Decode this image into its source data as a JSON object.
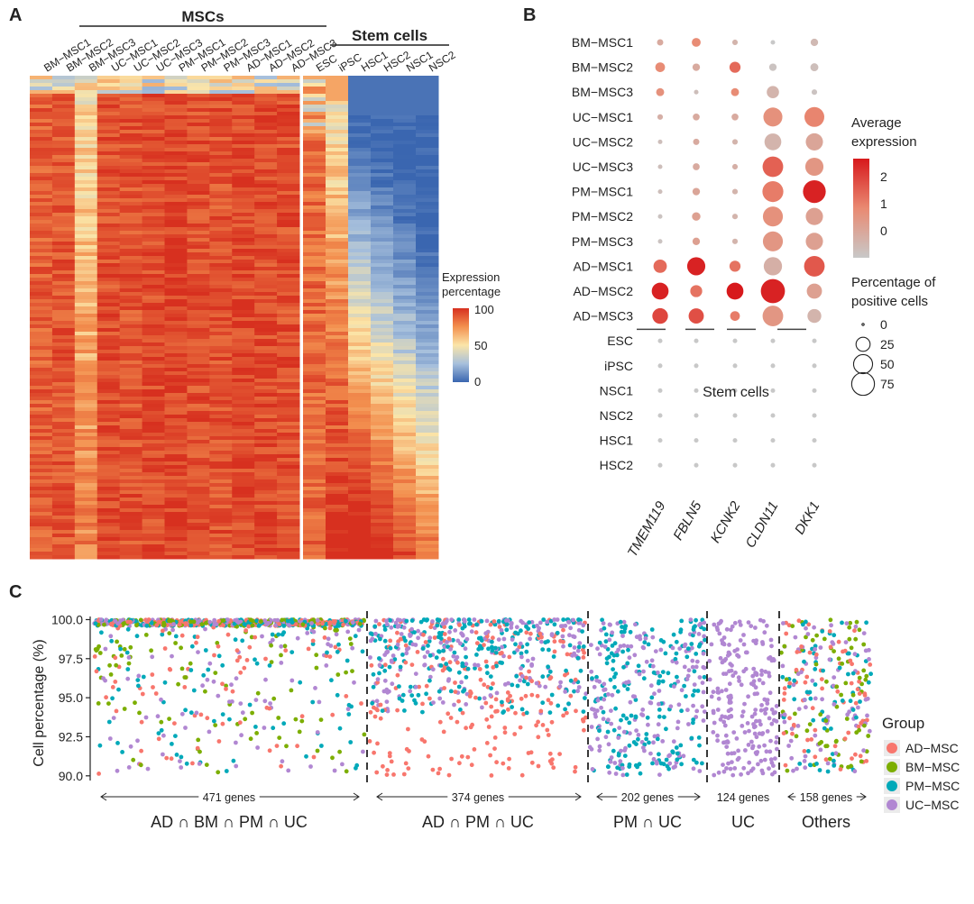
{
  "panels": {
    "A": "A",
    "B": "B",
    "C": "C"
  },
  "panelA": {
    "group_msc": "MSCs",
    "group_stem": "Stem cells",
    "legend_title": [
      "Expression",
      "percentage"
    ],
    "legend_ticks": [
      "100",
      "50",
      "0"
    ],
    "msc_columns": [
      "BM−MSC1",
      "BM−MSC2",
      "BM−MSC3",
      "UC−MSC1",
      "UC−MSC2",
      "UC−MSC3",
      "PM−MSC1",
      "PM−MSC2",
      "PM−MSC3",
      "AD−MSC1",
      "AD−MSC2",
      "AD−MSC3"
    ],
    "stem_columns": [
      "ESC",
      "iPSC",
      "HSC1",
      "HSC2",
      "NSC1",
      "NSC2"
    ],
    "colors": {
      "high": "#d7301f",
      "mid": "#fbe5a8",
      "low": "#3a66b0"
    }
  },
  "chart_data": [
    {
      "type": "scatter",
      "subtype": "dot-plot",
      "genes": [
        "TMEM119",
        "FBLN5",
        "KCNK2",
        "CLDN11",
        "DKK1"
      ],
      "rows": [
        "BM−MSC1",
        "BM−MSC2",
        "BM−MSC3",
        "UC−MSC1",
        "UC−MSC2",
        "UC−MSC3",
        "PM−MSC1",
        "PM−MSC2",
        "PM−MSC3",
        "AD−MSC1",
        "AD−MSC2",
        "AD−MSC3",
        "ESC",
        "iPSC",
        "NSC1",
        "NSC2",
        "HSC1",
        "HSC2"
      ],
      "stem_label": "Stem cells",
      "percent_positive": [
        [
          3,
          8,
          2,
          1,
          5
        ],
        [
          10,
          5,
          14,
          5,
          6
        ],
        [
          6,
          1,
          6,
          18,
          2
        ],
        [
          2,
          4,
          4,
          50,
          55
        ],
        [
          1,
          3,
          2,
          38,
          40
        ],
        [
          1,
          4,
          2,
          60,
          45
        ],
        [
          1,
          5,
          2,
          62,
          75
        ],
        [
          1,
          7,
          2,
          56,
          40
        ],
        [
          1,
          5,
          2,
          56,
          40
        ],
        [
          22,
          45,
          14,
          46,
          60
        ],
        [
          38,
          17,
          38,
          85,
          30
        ],
        [
          32,
          30,
          10,
          60,
          24
        ],
        [
          1,
          1,
          1,
          1,
          1
        ],
        [
          1,
          1,
          1,
          1,
          1
        ],
        [
          1,
          1,
          1,
          1,
          1
        ],
        [
          1,
          1,
          1,
          1,
          1
        ],
        [
          1,
          1,
          1,
          1,
          1
        ],
        [
          1,
          1,
          1,
          1,
          1
        ]
      ],
      "average_expression": [
        [
          0.6,
          1.2,
          0.4,
          0.0,
          0.3
        ],
        [
          1.2,
          0.6,
          1.6,
          0.1,
          0.2
        ],
        [
          1.1,
          0.2,
          1.2,
          0.4,
          0.1
        ],
        [
          0.5,
          0.6,
          0.6,
          1.1,
          1.3
        ],
        [
          0.2,
          0.6,
          0.4,
          0.4,
          0.7
        ],
        [
          0.2,
          0.6,
          0.5,
          1.7,
          1.0
        ],
        [
          0.2,
          0.7,
          0.4,
          1.4,
          2.4
        ],
        [
          0.1,
          0.8,
          0.4,
          1.1,
          0.8
        ],
        [
          0.1,
          0.8,
          0.4,
          1.0,
          0.8
        ],
        [
          1.6,
          2.4,
          1.5,
          0.5,
          1.8
        ],
        [
          2.4,
          1.5,
          2.5,
          2.4,
          0.8
        ],
        [
          2.0,
          1.9,
          1.4,
          1.0,
          0.4
        ],
        [
          0,
          0,
          0,
          0,
          0
        ],
        [
          0,
          0,
          0,
          0,
          0
        ],
        [
          0,
          0,
          0,
          0,
          0
        ],
        [
          0,
          0,
          0,
          0,
          0
        ],
        [
          0,
          0,
          0,
          0,
          0
        ],
        [
          0,
          0,
          0,
          0,
          0
        ]
      ],
      "legend_expression_title": [
        "Average",
        "expression"
      ],
      "legend_expression_ticks": [
        "2",
        "1",
        "0"
      ],
      "legend_percent_title": [
        "Percentage of",
        "positive cells"
      ],
      "legend_percent_values": [
        0,
        25,
        50,
        75
      ],
      "colors": {
        "high": "#d7191c",
        "low": "#c8c8c8"
      }
    },
    {
      "type": "scatter",
      "ylabel": "Cell percentage (%)",
      "ylim": [
        89.7,
        100.2
      ],
      "yticks": [
        "100.0",
        "97.5",
        "95.0",
        "92.5",
        "90.0"
      ],
      "ytick_values": [
        100.0,
        97.5,
        95.0,
        92.5,
        90.0
      ],
      "sections": [
        {
          "label": "AD ∩ BM ∩ PM ∩ UC",
          "genes": "471 genes",
          "count": 471,
          "groups": [
            "AD−MSC",
            "BM−MSC",
            "PM−MSC",
            "UC−MSC"
          ]
        },
        {
          "label": "AD ∩ PM ∩ UC",
          "genes": "374 genes",
          "count": 374,
          "groups": [
            "AD−MSC",
            "PM−MSC",
            "UC−MSC"
          ]
        },
        {
          "label": "PM ∩ UC",
          "genes": "202 genes",
          "count": 202,
          "groups": [
            "PM−MSC",
            "UC−MSC"
          ]
        },
        {
          "label": "UC",
          "genes": "124 genes",
          "count": 124,
          "groups": [
            "UC−MSC"
          ]
        },
        {
          "label": "Others",
          "genes": "158 genes",
          "count": 158,
          "groups": [
            "AD−MSC",
            "BM−MSC",
            "PM−MSC",
            "UC−MSC"
          ]
        }
      ],
      "legend_title": "Group",
      "series": [
        {
          "name": "AD−MSC",
          "color": "#f8766d"
        },
        {
          "name": "BM−MSC",
          "color": "#7cae00"
        },
        {
          "name": "PM−MSC",
          "color": "#00a9b9"
        },
        {
          "name": "UC−MSC",
          "color": "#b187d2"
        }
      ]
    }
  ]
}
